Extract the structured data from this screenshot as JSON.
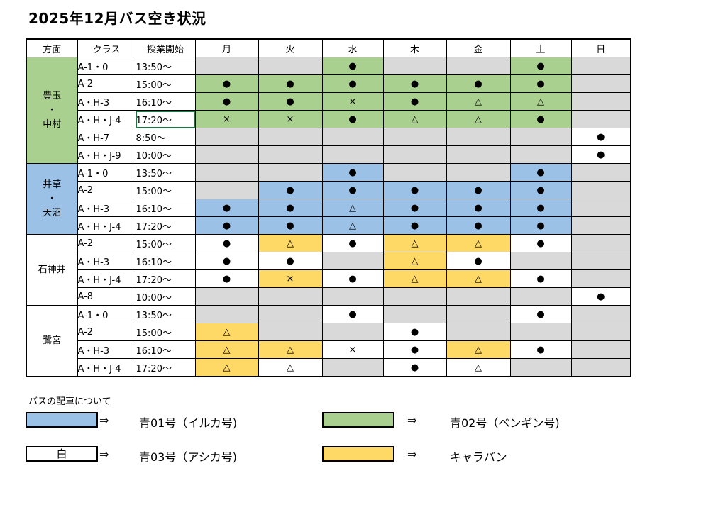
{
  "title": "2025年12月バス空き状況",
  "headers": [
    "方面",
    "クラス",
    "授業開始",
    "月",
    "火",
    "水",
    "木",
    "金",
    "土",
    "日"
  ],
  "colors": {
    "gray": "#d9d9d9",
    "green": "#a9d08e",
    "blue": "#9bc2e6",
    "yellow": "#ffd966",
    "white": "#ffffff"
  },
  "groups": [
    {
      "area": "豊玉\n・\n中村",
      "color": "green",
      "rows": [
        {
          "cls": "A-1・0",
          "start": "13:50～",
          "cells": [
            [
              "",
              "gray"
            ],
            [
              "",
              "gray"
            ],
            [
              "●",
              "green"
            ],
            [
              "",
              "gray"
            ],
            [
              "",
              "gray"
            ],
            [
              "●",
              "green"
            ],
            [
              "",
              "gray"
            ]
          ]
        },
        {
          "cls": "A-2",
          "start": "15:00～",
          "cells": [
            [
              "●",
              "green"
            ],
            [
              "●",
              "green"
            ],
            [
              "●",
              "green"
            ],
            [
              "●",
              "green"
            ],
            [
              "●",
              "green"
            ],
            [
              "●",
              "green"
            ],
            [
              "",
              "gray"
            ]
          ]
        },
        {
          "cls": "A・H-3",
          "start": "16:10～",
          "cells": [
            [
              "●",
              "green"
            ],
            [
              "●",
              "green"
            ],
            [
              "×",
              "green"
            ],
            [
              "●",
              "green"
            ],
            [
              "△",
              "green"
            ],
            [
              "△",
              "green"
            ],
            [
              "",
              "gray"
            ]
          ]
        },
        {
          "cls": "A・H・J-4",
          "start": "17:20～",
          "cells": [
            [
              "×",
              "green"
            ],
            [
              "×",
              "green"
            ],
            [
              "●",
              "green"
            ],
            [
              "△",
              "green"
            ],
            [
              "△",
              "green"
            ],
            [
              "●",
              "green"
            ],
            [
              "",
              "gray"
            ]
          ]
        },
        {
          "cls": "A・H-7",
          "start": "8:50～",
          "cells": [
            [
              "",
              "gray"
            ],
            [
              "",
              "gray"
            ],
            [
              "",
              "gray"
            ],
            [
              "",
              "gray"
            ],
            [
              "",
              "gray"
            ],
            [
              "",
              "gray"
            ],
            [
              "●",
              "white"
            ]
          ]
        },
        {
          "cls": "A・H・J-9",
          "start": "10:00～",
          "cells": [
            [
              "",
              "gray"
            ],
            [
              "",
              "gray"
            ],
            [
              "",
              "gray"
            ],
            [
              "",
              "gray"
            ],
            [
              "",
              "gray"
            ],
            [
              "",
              "gray"
            ],
            [
              "●",
              "white"
            ]
          ]
        }
      ]
    },
    {
      "area": "井草\n・\n天沼",
      "color": "blue",
      "rows": [
        {
          "cls": "A-1・0",
          "start": "13:50～",
          "cells": [
            [
              "",
              "gray"
            ],
            [
              "",
              "gray"
            ],
            [
              "●",
              "blue"
            ],
            [
              "",
              "gray"
            ],
            [
              "",
              "gray"
            ],
            [
              "●",
              "blue"
            ],
            [
              "",
              "gray"
            ]
          ]
        },
        {
          "cls": "A-2",
          "start": "15:00～",
          "cells": [
            [
              "",
              "gray"
            ],
            [
              "●",
              "blue"
            ],
            [
              "●",
              "blue"
            ],
            [
              "●",
              "blue"
            ],
            [
              "●",
              "blue"
            ],
            [
              "●",
              "blue"
            ],
            [
              "",
              "gray"
            ]
          ]
        },
        {
          "cls": "A・H-3",
          "start": "16:10～",
          "cells": [
            [
              "●",
              "blue"
            ],
            [
              "●",
              "blue"
            ],
            [
              "△",
              "blue"
            ],
            [
              "●",
              "blue"
            ],
            [
              "●",
              "blue"
            ],
            [
              "●",
              "blue"
            ],
            [
              "",
              "gray"
            ]
          ]
        },
        {
          "cls": "A・H・J-4",
          "start": "17:20～",
          "cells": [
            [
              "●",
              "blue"
            ],
            [
              "●",
              "blue"
            ],
            [
              "△",
              "blue"
            ],
            [
              "●",
              "blue"
            ],
            [
              "●",
              "blue"
            ],
            [
              "●",
              "blue"
            ],
            [
              "",
              "gray"
            ]
          ]
        }
      ]
    },
    {
      "area": "石神井",
      "color": "white",
      "rows": [
        {
          "cls": "A-2",
          "start": "15:00～",
          "cells": [
            [
              "●",
              "white"
            ],
            [
              "△",
              "yellow"
            ],
            [
              "●",
              "white"
            ],
            [
              "△",
              "yellow"
            ],
            [
              "△",
              "yellow"
            ],
            [
              "●",
              "white"
            ],
            [
              "",
              "gray"
            ]
          ]
        },
        {
          "cls": "A・H-3",
          "start": "16:10～",
          "cells": [
            [
              "●",
              "white"
            ],
            [
              "●",
              "white"
            ],
            [
              "",
              "gray"
            ],
            [
              "△",
              "yellow"
            ],
            [
              "●",
              "white"
            ],
            [
              "",
              "gray"
            ],
            [
              "",
              "gray"
            ]
          ]
        },
        {
          "cls": "A・H・J-4",
          "start": "17:20～",
          "cells": [
            [
              "●",
              "white"
            ],
            [
              "×",
              "yellow"
            ],
            [
              "●",
              "white"
            ],
            [
              "△",
              "yellow"
            ],
            [
              "△",
              "yellow"
            ],
            [
              "●",
              "white"
            ],
            [
              "",
              "gray"
            ]
          ]
        },
        {
          "cls": "A-8",
          "start": "10:00～",
          "cells": [
            [
              "",
              "gray"
            ],
            [
              "",
              "gray"
            ],
            [
              "",
              "gray"
            ],
            [
              "",
              "gray"
            ],
            [
              "",
              "gray"
            ],
            [
              "",
              "gray"
            ],
            [
              "●",
              "white"
            ]
          ]
        }
      ]
    },
    {
      "area": "鷺宮",
      "color": "white",
      "rows": [
        {
          "cls": "A-1・0",
          "start": "13:50～",
          "cells": [
            [
              "",
              "gray"
            ],
            [
              "",
              "gray"
            ],
            [
              "●",
              "white"
            ],
            [
              "",
              "gray"
            ],
            [
              "",
              "gray"
            ],
            [
              "●",
              "white"
            ],
            [
              "",
              "gray"
            ]
          ]
        },
        {
          "cls": "A-2",
          "start": "15:00～",
          "cells": [
            [
              "△",
              "yellow"
            ],
            [
              "",
              "gray"
            ],
            [
              "",
              "gray"
            ],
            [
              "●",
              "white"
            ],
            [
              "",
              "gray"
            ],
            [
              "",
              "gray"
            ],
            [
              "",
              "gray"
            ]
          ]
        },
        {
          "cls": "A・H-3",
          "start": "16:10～",
          "cells": [
            [
              "△",
              "yellow"
            ],
            [
              "△",
              "yellow"
            ],
            [
              "×",
              "white"
            ],
            [
              "●",
              "white"
            ],
            [
              "△",
              "yellow"
            ],
            [
              "●",
              "white"
            ],
            [
              "",
              "gray"
            ]
          ]
        },
        {
          "cls": "A・H・J-4",
          "start": "17:20～",
          "cells": [
            [
              "△",
              "yellow"
            ],
            [
              "△",
              "white"
            ],
            [
              "",
              "gray"
            ],
            [
              "●",
              "white"
            ],
            [
              "△",
              "white"
            ],
            [
              "",
              "gray"
            ],
            [
              "",
              "gray"
            ]
          ]
        }
      ]
    }
  ],
  "legend": {
    "title": "バスの配車について",
    "arrow": "⇒",
    "items": [
      {
        "swatch_text": "",
        "color": "blue",
        "label": "青01号（イルカ号)"
      },
      {
        "swatch_text": "",
        "color": "green",
        "label": "青02号（ペンギン号)"
      },
      {
        "swatch_text": "白",
        "color": "white",
        "label": "青03号（アシカ号)"
      },
      {
        "swatch_text": "",
        "color": "yellow",
        "label": "キャラバン"
      }
    ]
  }
}
